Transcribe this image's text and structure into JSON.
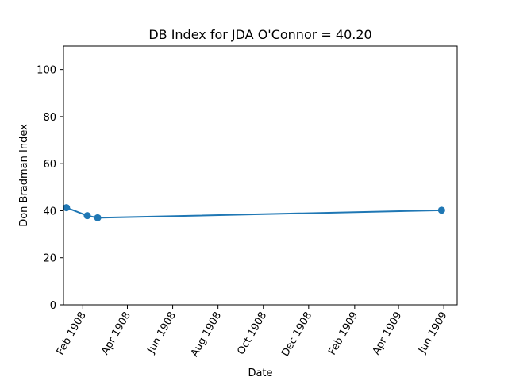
{
  "chart_data": {
    "type": "line",
    "title": "DB Index for JDA O'Connor = 40.20",
    "xlabel": "Date",
    "ylabel": "Don Bradman Index",
    "x_ticks": [
      "1908-02-01",
      "1908-04-01",
      "1908-06-01",
      "1908-08-01",
      "1908-10-01",
      "1908-12-01",
      "1909-02-01",
      "1909-04-01",
      "1909-06-01"
    ],
    "x_tick_labels": [
      "Feb 1908",
      "Apr 1908",
      "Jun 1908",
      "Aug 1908",
      "Oct 1908",
      "Dec 1908",
      "Feb 1909",
      "Apr 1909",
      "Jun 1909"
    ],
    "y_ticks": [
      0,
      20,
      40,
      60,
      80,
      100
    ],
    "y_tick_labels": [
      "0",
      "20",
      "40",
      "60",
      "80",
      "100"
    ],
    "xlim": [
      "1908-01-06",
      "1909-06-19"
    ],
    "ylim": [
      0,
      110
    ],
    "grid": false,
    "series": [
      {
        "color": "#1f77b4",
        "points": [
          {
            "x": "1908-01-10",
            "y": 41.3
          },
          {
            "x": "1908-02-07",
            "y": 37.9
          },
          {
            "x": "1908-02-21",
            "y": 37.0
          },
          {
            "x": "1909-05-29",
            "y": 40.2
          }
        ]
      }
    ]
  }
}
